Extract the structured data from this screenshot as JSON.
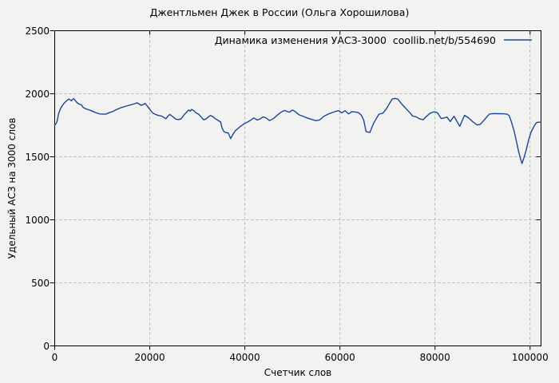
{
  "page": {
    "background": "#f2f2f1",
    "accent_color": "#1a4795"
  },
  "chart_data": {
    "type": "line",
    "title": "Джентльмен Джек в России (Ольга Хорошилова)",
    "xlabel": "Счетчик слов",
    "ylabel": "Удельный АСЗ на 3000 слов",
    "xlim": [
      0,
      102300
    ],
    "ylim": [
      0,
      2500
    ],
    "xticks": [
      0,
      20000,
      40000,
      60000,
      80000,
      100000
    ],
    "yticks": [
      0,
      500,
      1000,
      1500,
      2000,
      2500
    ],
    "xtick_labels": [
      "0",
      "20000",
      "40000",
      "60000",
      "80000",
      "100000"
    ],
    "ytick_labels": [
      "0",
      "500",
      "1000",
      "1500",
      "2000",
      "2500"
    ],
    "grid": true,
    "grid_color": "#b3b3b3",
    "line_color": "#1a4795",
    "border_color": "#000000",
    "legend": {
      "position": "top-right-inside",
      "label": "Динамика изменения УАСЗ-3000  coollib.net/b/554690"
    },
    "series": [
      {
        "name": "Динамика изменения УАСЗ-3000  coollib.net/b/554690",
        "points": [
          [
            0,
            1750
          ],
          [
            200,
            1758
          ],
          [
            500,
            1780
          ],
          [
            800,
            1840
          ],
          [
            1200,
            1880
          ],
          [
            1600,
            1906
          ],
          [
            2000,
            1926
          ],
          [
            2500,
            1944
          ],
          [
            3000,
            1958
          ],
          [
            3500,
            1945
          ],
          [
            4000,
            1962
          ],
          [
            4600,
            1933
          ],
          [
            5000,
            1920
          ],
          [
            5600,
            1912
          ],
          [
            6000,
            1891
          ],
          [
            6600,
            1880
          ],
          [
            7200,
            1872
          ],
          [
            7700,
            1866
          ],
          [
            8300,
            1856
          ],
          [
            9000,
            1845
          ],
          [
            9500,
            1840
          ],
          [
            10000,
            1839
          ],
          [
            10700,
            1838
          ],
          [
            11200,
            1846
          ],
          [
            11700,
            1853
          ],
          [
            12200,
            1858
          ],
          [
            13000,
            1875
          ],
          [
            14000,
            1890
          ],
          [
            15000,
            1902
          ],
          [
            16000,
            1912
          ],
          [
            16800,
            1921
          ],
          [
            17300,
            1928
          ],
          [
            17800,
            1918
          ],
          [
            18200,
            1908
          ],
          [
            18700,
            1916
          ],
          [
            19000,
            1924
          ],
          [
            19500,
            1901
          ],
          [
            20000,
            1876
          ],
          [
            20600,
            1848
          ],
          [
            21200,
            1836
          ],
          [
            21800,
            1828
          ],
          [
            22400,
            1824
          ],
          [
            23000,
            1812
          ],
          [
            23400,
            1801
          ],
          [
            23800,
            1822
          ],
          [
            24200,
            1836
          ],
          [
            24800,
            1820
          ],
          [
            25400,
            1800
          ],
          [
            26000,
            1795
          ],
          [
            26600,
            1801
          ],
          [
            27200,
            1832
          ],
          [
            27900,
            1861
          ],
          [
            28200,
            1871
          ],
          [
            28500,
            1862
          ],
          [
            28800,
            1876
          ],
          [
            29200,
            1868
          ],
          [
            29700,
            1850
          ],
          [
            30300,
            1836
          ],
          [
            30900,
            1812
          ],
          [
            31300,
            1794
          ],
          [
            31700,
            1797
          ],
          [
            32200,
            1812
          ],
          [
            32700,
            1827
          ],
          [
            33200,
            1821
          ],
          [
            33800,
            1802
          ],
          [
            34400,
            1788
          ],
          [
            34900,
            1776
          ],
          [
            35200,
            1730
          ],
          [
            35600,
            1700
          ],
          [
            36000,
            1692
          ],
          [
            36500,
            1690
          ],
          [
            37000,
            1645
          ],
          [
            37500,
            1678
          ],
          [
            38000,
            1707
          ],
          [
            38500,
            1722
          ],
          [
            39000,
            1740
          ],
          [
            39500,
            1752
          ],
          [
            40000,
            1766
          ],
          [
            40600,
            1776
          ],
          [
            41200,
            1790
          ],
          [
            41900,
            1808
          ],
          [
            42600,
            1792
          ],
          [
            43200,
            1800
          ],
          [
            43800,
            1816
          ],
          [
            44400,
            1810
          ],
          [
            45200,
            1787
          ],
          [
            46100,
            1806
          ],
          [
            46900,
            1833
          ],
          [
            47700,
            1856
          ],
          [
            48400,
            1868
          ],
          [
            48900,
            1859
          ],
          [
            49400,
            1855
          ],
          [
            50000,
            1871
          ],
          [
            50600,
            1858
          ],
          [
            51400,
            1833
          ],
          [
            52300,
            1820
          ],
          [
            53100,
            1808
          ],
          [
            54000,
            1797
          ],
          [
            54900,
            1787
          ],
          [
            55700,
            1792
          ],
          [
            56700,
            1823
          ],
          [
            57600,
            1840
          ],
          [
            58400,
            1851
          ],
          [
            59100,
            1860
          ],
          [
            59700,
            1866
          ],
          [
            60400,
            1849
          ],
          [
            61100,
            1866
          ],
          [
            61800,
            1840
          ],
          [
            62500,
            1858
          ],
          [
            63300,
            1855
          ],
          [
            63900,
            1850
          ],
          [
            64500,
            1830
          ],
          [
            65000,
            1790
          ],
          [
            65500,
            1700
          ],
          [
            66300,
            1693
          ],
          [
            67000,
            1760
          ],
          [
            67500,
            1793
          ],
          [
            68200,
            1838
          ],
          [
            69000,
            1845
          ],
          [
            69700,
            1876
          ],
          [
            70400,
            1922
          ],
          [
            71000,
            1958
          ],
          [
            71600,
            1963
          ],
          [
            72200,
            1957
          ],
          [
            73000,
            1918
          ],
          [
            73800,
            1886
          ],
          [
            74700,
            1850
          ],
          [
            75300,
            1823
          ],
          [
            76000,
            1818
          ],
          [
            76800,
            1800
          ],
          [
            77500,
            1794
          ],
          [
            78200,
            1821
          ],
          [
            79000,
            1846
          ],
          [
            79800,
            1857
          ],
          [
            80500,
            1850
          ],
          [
            81300,
            1803
          ],
          [
            82000,
            1809
          ],
          [
            82500,
            1816
          ],
          [
            83200,
            1780
          ],
          [
            84000,
            1822
          ],
          [
            85200,
            1742
          ],
          [
            86200,
            1829
          ],
          [
            87000,
            1810
          ],
          [
            87900,
            1780
          ],
          [
            88800,
            1753
          ],
          [
            89500,
            1757
          ],
          [
            90300,
            1790
          ],
          [
            90900,
            1817
          ],
          [
            91500,
            1840
          ],
          [
            92400,
            1843
          ],
          [
            93300,
            1842
          ],
          [
            94200,
            1841
          ],
          [
            95100,
            1839
          ],
          [
            95600,
            1827
          ],
          [
            96100,
            1773
          ],
          [
            96600,
            1708
          ],
          [
            97100,
            1628
          ],
          [
            97600,
            1540
          ],
          [
            98000,
            1482
          ],
          [
            98300,
            1447
          ],
          [
            98700,
            1492
          ],
          [
            99200,
            1556
          ],
          [
            99700,
            1635
          ],
          [
            100200,
            1695
          ],
          [
            100700,
            1733
          ],
          [
            101100,
            1760
          ],
          [
            101400,
            1772
          ],
          [
            102100,
            1775
          ]
        ]
      }
    ]
  }
}
